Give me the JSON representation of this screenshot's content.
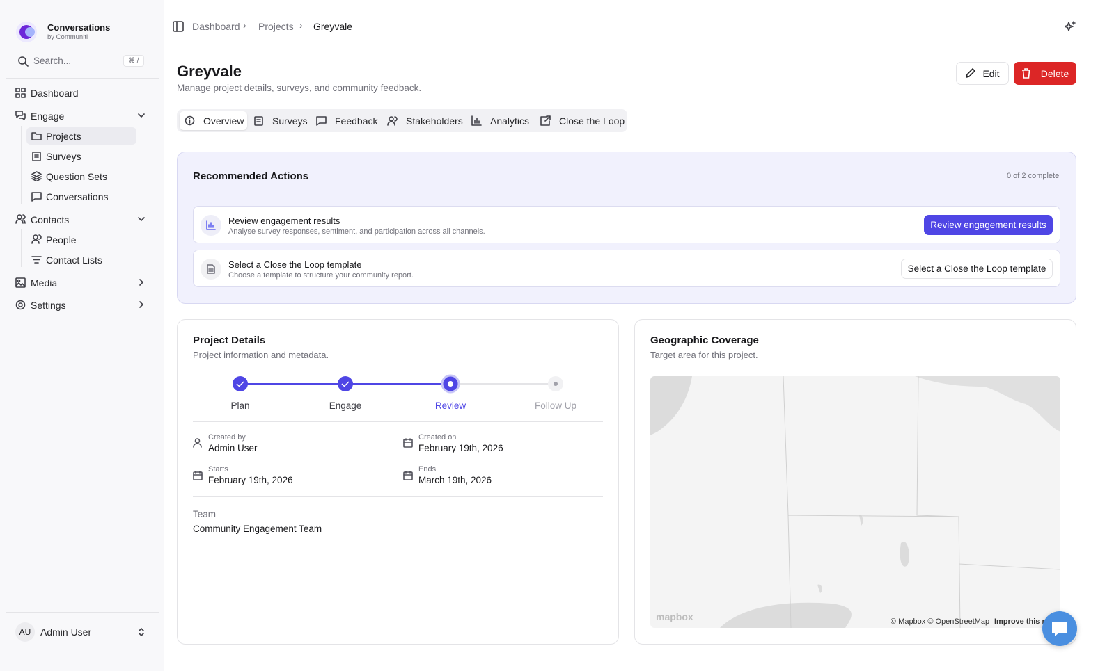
{
  "app": {
    "name": "Conversations",
    "subtitle": "by Communiti"
  },
  "search": {
    "placeholder": "Search...",
    "shortcut": "⌘ /"
  },
  "nav": {
    "dashboard": "Dashboard",
    "engage": "Engage",
    "projects": "Projects",
    "surveys": "Surveys",
    "question_sets": "Question Sets",
    "conversations": "Conversations",
    "contacts": "Contacts",
    "people": "People",
    "contact_lists": "Contact Lists",
    "media": "Media",
    "settings": "Settings"
  },
  "user": {
    "initials": "AU",
    "name": "Admin User"
  },
  "breadcrumb": [
    "Dashboard",
    "Projects",
    "Greyvale"
  ],
  "header": {
    "title": "Greyvale",
    "subtitle": "Manage project details, surveys, and community feedback.",
    "edit": "Edit",
    "delete": "Delete"
  },
  "tabs": [
    "Overview",
    "Surveys",
    "Feedback",
    "Stakeholders",
    "Analytics",
    "Close the Loop"
  ],
  "recommended": {
    "title": "Recommended Actions",
    "progress": "0 of 2 complete",
    "items": [
      {
        "title": "Review engagement results",
        "description": "Analyse survey responses, sentiment, and participation across all channels.",
        "button": "Review engagement results"
      },
      {
        "title": "Select a Close the Loop template",
        "description": "Choose a template to structure your community report.",
        "button": "Select a Close the Loop template"
      }
    ]
  },
  "details": {
    "title": "Project Details",
    "subtitle": "Project information and metadata.",
    "steps": [
      "Plan",
      "Engage",
      "Review",
      "Follow Up"
    ],
    "fields": [
      {
        "label": "Created by",
        "value": "Admin User"
      },
      {
        "label": "Created on",
        "value": "February 19th, 2026"
      },
      {
        "label": "Starts",
        "value": "February 19th, 2026"
      },
      {
        "label": "Ends",
        "value": "March 19th, 2026"
      }
    ],
    "team_label": "Team",
    "team": "Community Engagement Team"
  },
  "map": {
    "title": "Geographic Coverage",
    "subtitle": "Target area for this project.",
    "logo": "mapbox",
    "attribution": "© Mapbox © OpenStreetMap",
    "improve": "Improve this map"
  }
}
